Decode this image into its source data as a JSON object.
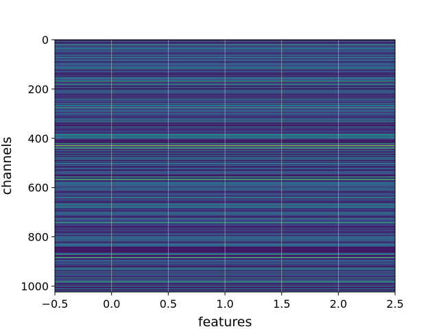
{
  "chart_data": {
    "type": "heatmap",
    "title": "",
    "xlabel": "features",
    "ylabel": "channels",
    "xlim": [
      -0.5,
      2.5
    ],
    "ylim": [
      1024,
      0
    ],
    "y_inverted": true,
    "grid": true,
    "colormap": "viridis",
    "n_rows": 1024,
    "n_cols": 3,
    "x_ticks": [
      -0.5,
      0.0,
      0.5,
      1.0,
      1.5,
      2.0,
      2.5
    ],
    "x_tick_labels": [
      "−0.5",
      "0.0",
      "0.5",
      "1.0",
      "1.5",
      "2.0",
      "2.5"
    ],
    "y_ticks": [
      0,
      200,
      400,
      600,
      800,
      1000
    ],
    "y_tick_labels": [
      "0",
      "200",
      "400",
      "600",
      "800",
      "1000"
    ],
    "row_bands": [
      {
        "row": 20,
        "value": 0.55
      },
      {
        "row": 35,
        "value": 0.45
      },
      {
        "row": 70,
        "value": 0.5
      },
      {
        "row": 110,
        "value": 0.4
      },
      {
        "row": 155,
        "value": 0.45
      },
      {
        "row": 168,
        "value": 0.6
      },
      {
        "row": 180,
        "value": 0.55
      },
      {
        "row": 205,
        "value": 0.4
      },
      {
        "row": 240,
        "value": 0.45
      },
      {
        "row": 265,
        "value": 0.5
      },
      {
        "row": 275,
        "value": 0.6
      },
      {
        "row": 300,
        "value": 0.4
      },
      {
        "row": 330,
        "value": 0.45
      },
      {
        "row": 385,
        "value": 0.5
      },
      {
        "row": 395,
        "value": 0.45
      },
      {
        "row": 420,
        "value": 0.55
      },
      {
        "row": 428,
        "value": 0.85
      },
      {
        "row": 438,
        "value": 0.7
      },
      {
        "row": 470,
        "value": 0.4
      },
      {
        "row": 500,
        "value": 0.5
      },
      {
        "row": 520,
        "value": 0.45
      },
      {
        "row": 555,
        "value": 0.55
      },
      {
        "row": 565,
        "value": 0.7
      },
      {
        "row": 600,
        "value": 0.4
      },
      {
        "row": 640,
        "value": 0.45
      },
      {
        "row": 680,
        "value": 0.5
      },
      {
        "row": 700,
        "value": 0.4
      },
      {
        "row": 725,
        "value": 0.55
      },
      {
        "row": 740,
        "value": 0.6
      },
      {
        "row": 790,
        "value": 0.4
      },
      {
        "row": 830,
        "value": 0.45
      },
      {
        "row": 870,
        "value": 0.55
      },
      {
        "row": 882,
        "value": 0.7
      },
      {
        "row": 925,
        "value": 0.45
      },
      {
        "row": 950,
        "value": 0.5
      },
      {
        "row": 965,
        "value": 0.55
      },
      {
        "row": 980,
        "value": 0.6
      },
      {
        "row": 1000,
        "value": 0.5
      },
      {
        "row": 1010,
        "value": 0.45
      }
    ]
  },
  "colors": {
    "background": "#440154",
    "mid": "#31688e",
    "high": "#35b779",
    "frame": "#000000",
    "grid": "#b0b0b0"
  }
}
